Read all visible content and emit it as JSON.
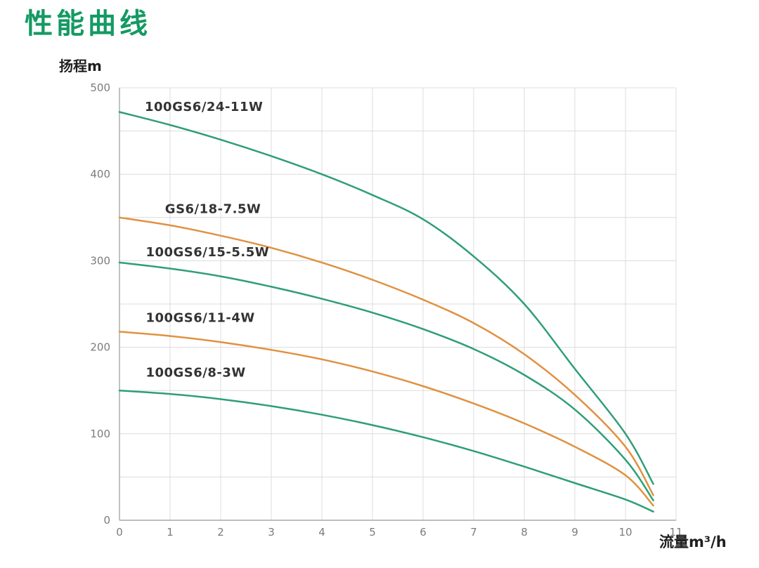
{
  "header": {
    "title": "性能曲线",
    "title_color": "#149a63"
  },
  "chart_data": {
    "type": "line",
    "title": "性能曲线",
    "xlabel": "流量m³/h",
    "ylabel": "扬程m",
    "xlim": [
      0,
      11
    ],
    "ylim": [
      0,
      500
    ],
    "x_ticks": [
      0,
      1,
      2,
      3,
      4,
      5,
      6,
      7,
      8,
      9,
      10,
      11
    ],
    "y_ticks": [
      0,
      100,
      200,
      300,
      400,
      500
    ],
    "y_minor_grid_step": 50,
    "x_grid_step": 1,
    "grid": true,
    "legend_position": "inline-curve-labels",
    "colors": {
      "green_curve": "#2f9e78",
      "orange_curve": "#df9242",
      "grid": "#dcdcdc",
      "axis": "#a8a8a8",
      "tick_text": "#7c7c7c",
      "curve_label_text": "#333333"
    },
    "x": [
      0,
      1,
      2,
      3,
      4,
      5,
      6,
      7,
      8,
      9,
      10,
      10.55
    ],
    "series": [
      {
        "name": "100GS6/24-11W",
        "color_key": "green_curve",
        "values": [
          472,
          457,
          440,
          421,
          400,
          376,
          348,
          305,
          250,
          175,
          100,
          42
        ],
        "label_x": 0.5,
        "label_y": 478
      },
      {
        "name": "GS6/18-7.5W",
        "color_key": "orange_curve",
        "values": [
          350,
          341,
          329,
          315,
          298,
          278,
          255,
          228,
          192,
          145,
          85,
          29
        ],
        "label_x": 0.9,
        "label_y": 360
      },
      {
        "name": "100GS6/15-5.5W",
        "color_key": "green_curve",
        "values": [
          298,
          291,
          282,
          270,
          256,
          240,
          221,
          198,
          168,
          128,
          70,
          23
        ],
        "label_x": 0.52,
        "label_y": 310
      },
      {
        "name": "100GS6/11-4W",
        "color_key": "orange_curve",
        "values": [
          218,
          213,
          206,
          197,
          186,
          172,
          155,
          135,
          112,
          85,
          52,
          17
        ],
        "label_x": 0.52,
        "label_y": 234
      },
      {
        "name": "100GS6/8-3W",
        "color_key": "green_curve",
        "values": [
          150,
          146,
          140,
          132,
          122,
          110,
          96,
          80,
          62,
          43,
          24,
          10
        ],
        "label_x": 0.52,
        "label_y": 171
      }
    ]
  }
}
